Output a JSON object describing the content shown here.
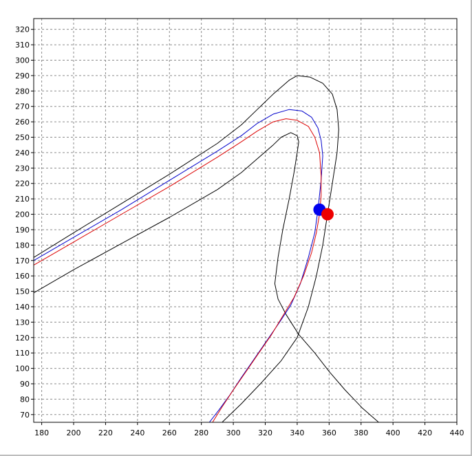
{
  "chart_data": {
    "type": "line",
    "title": "",
    "xlabel": "",
    "ylabel": "",
    "xlim": [
      175,
      440
    ],
    "ylim": [
      65,
      327
    ],
    "grid": true,
    "x_ticks": [
      180,
      200,
      220,
      240,
      260,
      280,
      300,
      320,
      340,
      360,
      380,
      400,
      420,
      440
    ],
    "y_ticks": [
      70,
      80,
      90,
      100,
      110,
      120,
      130,
      140,
      150,
      160,
      170,
      180,
      190,
      200,
      210,
      220,
      230,
      240,
      250,
      260,
      270,
      280,
      290,
      300,
      310,
      320
    ],
    "series": [
      {
        "color": "#000000",
        "points": [
          [
            175,
            172
          ],
          [
            200,
            188
          ],
          [
            230,
            207
          ],
          [
            260,
            226
          ],
          [
            290,
            246
          ],
          [
            305,
            258
          ],
          [
            315,
            268
          ],
          [
            325,
            278
          ],
          [
            335,
            287
          ],
          [
            340,
            290
          ],
          [
            348,
            289
          ],
          [
            356,
            285
          ],
          [
            362,
            278
          ],
          [
            365,
            268
          ],
          [
            366,
            255
          ],
          [
            365,
            240
          ],
          [
            362,
            220
          ],
          [
            359,
            200
          ],
          [
            356,
            180
          ],
          [
            352,
            160
          ],
          [
            347,
            140
          ],
          [
            340,
            120
          ],
          [
            330,
            105
          ],
          [
            317,
            90
          ],
          [
            305,
            77
          ],
          [
            293,
            65
          ]
        ]
      },
      {
        "color": "#000000",
        "points": [
          [
            175,
            149
          ],
          [
            200,
            164
          ],
          [
            230,
            181
          ],
          [
            260,
            198
          ],
          [
            290,
            216
          ],
          [
            305,
            227
          ],
          [
            315,
            236
          ],
          [
            325,
            245
          ],
          [
            330,
            250
          ],
          [
            336,
            253
          ],
          [
            340,
            251
          ],
          [
            341,
            247
          ],
          [
            340,
            240
          ],
          [
            338,
            227
          ],
          [
            335,
            210
          ],
          [
            331,
            190
          ],
          [
            328,
            172
          ],
          [
            326,
            155
          ],
          [
            328,
            145
          ],
          [
            333,
            135
          ],
          [
            341,
            122
          ],
          [
            351,
            110
          ],
          [
            360,
            98
          ],
          [
            370,
            86
          ],
          [
            381,
            74
          ],
          [
            391,
            65
          ]
        ]
      },
      {
        "color": "#0000cc",
        "points": [
          [
            175,
            170
          ],
          [
            200,
            185
          ],
          [
            230,
            203
          ],
          [
            260,
            222
          ],
          [
            290,
            241
          ],
          [
            305,
            251
          ],
          [
            315,
            259
          ],
          [
            325,
            265
          ],
          [
            335,
            268
          ],
          [
            343,
            267
          ],
          [
            349,
            263
          ],
          [
            353,
            256
          ],
          [
            355,
            248
          ],
          [
            356,
            238
          ],
          [
            355,
            222
          ],
          [
            353,
            203
          ],
          [
            351,
            188
          ],
          [
            347,
            172
          ],
          [
            342,
            155
          ],
          [
            336,
            141
          ],
          [
            329,
            130
          ],
          [
            321,
            118
          ],
          [
            313,
            106
          ],
          [
            305,
            94
          ],
          [
            298,
            83
          ],
          [
            291,
            73
          ],
          [
            285,
            65
          ]
        ]
      },
      {
        "color": "#dd0000",
        "points": [
          [
            175,
            167
          ],
          [
            200,
            182
          ],
          [
            230,
            200
          ],
          [
            260,
            218
          ],
          [
            290,
            237
          ],
          [
            305,
            247
          ],
          [
            315,
            254
          ],
          [
            325,
            260
          ],
          [
            333,
            262
          ],
          [
            340,
            261
          ],
          [
            347,
            257
          ],
          [
            351,
            250
          ],
          [
            354,
            240
          ],
          [
            355,
            225
          ],
          [
            355,
            212
          ],
          [
            354,
            200
          ],
          [
            352,
            188
          ],
          [
            349,
            175
          ],
          [
            344,
            160
          ],
          [
            338,
            146
          ],
          [
            331,
            134
          ],
          [
            324,
            122
          ],
          [
            316,
            110
          ],
          [
            308,
            98
          ],
          [
            300,
            86
          ],
          [
            293,
            75
          ],
          [
            287,
            65
          ]
        ]
      }
    ],
    "markers": [
      {
        "color": "#0000ee",
        "x": 354,
        "y": 203
      },
      {
        "color": "#ee0000",
        "x": 359,
        "y": 200
      }
    ]
  }
}
